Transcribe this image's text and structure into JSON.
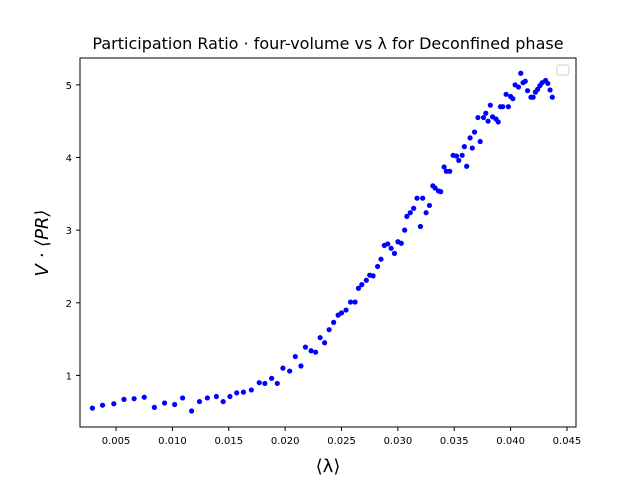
{
  "chart_data": {
    "type": "scatter",
    "title": "Participation Ratio · four-volume vs λ for Deconfined phase",
    "xlabel": "⟨λ⟩",
    "ylabel": "V · ⟨PR⟩",
    "xlim": [
      0.0018,
      0.0458
    ],
    "ylim": [
      0.29,
      5.37
    ],
    "x_ticks": [
      0.005,
      0.01,
      0.015,
      0.02,
      0.025,
      0.03,
      0.035,
      0.04,
      0.045
    ],
    "x_tick_labels": [
      "0.005",
      "0.010",
      "0.015",
      "0.020",
      "0.025",
      "0.030",
      "0.035",
      "0.040",
      "0.045"
    ],
    "y_ticks": [
      1,
      2,
      3,
      4,
      5
    ],
    "y_tick_labels": [
      "1",
      "2",
      "3",
      "4",
      "5"
    ],
    "grid": false,
    "legend": "top-right, empty",
    "marker_color": "#0000ff",
    "series": [
      {
        "x": [
          0.0029,
          0.0038,
          0.0048,
          0.0057,
          0.0066,
          0.0075,
          0.0084,
          0.0093,
          0.0102,
          0.0109,
          0.0117,
          0.0124,
          0.0131,
          0.0139,
          0.0145,
          0.0151,
          0.0157,
          0.0163,
          0.017,
          0.0177,
          0.0182,
          0.0188,
          0.0193,
          0.0198,
          0.0204,
          0.0209,
          0.0214,
          0.0218,
          0.0223,
          0.0227,
          0.0231,
          0.0235,
          0.0239,
          0.0243,
          0.0247,
          0.025,
          0.0254,
          0.0258,
          0.0262,
          0.0265,
          0.0268,
          0.0272,
          0.0275,
          0.0278,
          0.0282,
          0.0285,
          0.0288,
          0.0291,
          0.0294,
          0.0297,
          0.03,
          0.0303,
          0.0306,
          0.0308,
          0.0311,
          0.0314,
          0.0317,
          0.032,
          0.0322,
          0.0325,
          0.0328,
          0.0331,
          0.0333,
          0.0336,
          0.0338,
          0.0341,
          0.0343,
          0.0346,
          0.0349,
          0.0352,
          0.0354,
          0.0357,
          0.0359,
          0.0361,
          0.0364,
          0.0366,
          0.0368,
          0.0371,
          0.0373,
          0.0376,
          0.0378,
          0.038,
          0.0382,
          0.0384,
          0.0387,
          0.0389,
          0.0391,
          0.0393,
          0.0396,
          0.0398,
          0.04,
          0.0402,
          0.0404,
          0.0407,
          0.0409,
          0.0411,
          0.0413,
          0.0415,
          0.0418,
          0.042,
          0.0422,
          0.0424,
          0.0426,
          0.0428,
          0.0431,
          0.0433,
          0.0435,
          0.0437
        ],
        "y": [
          0.55,
          0.59,
          0.61,
          0.67,
          0.68,
          0.7,
          0.56,
          0.62,
          0.6,
          0.69,
          0.51,
          0.64,
          0.69,
          0.71,
          0.64,
          0.71,
          0.76,
          0.77,
          0.8,
          0.9,
          0.89,
          0.96,
          0.89,
          1.1,
          1.06,
          1.26,
          1.13,
          1.39,
          1.34,
          1.32,
          1.52,
          1.45,
          1.63,
          1.73,
          1.83,
          1.86,
          1.9,
          2.01,
          2.01,
          2.2,
          2.25,
          2.31,
          2.38,
          2.37,
          2.5,
          2.6,
          2.79,
          2.81,
          2.75,
          2.68,
          2.84,
          2.82,
          3.0,
          3.19,
          3.24,
          3.3,
          3.44,
          3.05,
          3.44,
          3.24,
          3.34,
          3.61,
          3.58,
          3.54,
          3.53,
          3.87,
          3.81,
          3.81,
          4.03,
          4.02,
          3.96,
          4.03,
          4.15,
          3.88,
          4.27,
          4.13,
          4.35,
          4.55,
          4.22,
          4.55,
          4.61,
          4.5,
          4.72,
          4.56,
          4.53,
          4.49,
          4.7,
          4.7,
          4.87,
          4.7,
          4.84,
          4.81,
          5.0,
          4.97,
          5.16,
          5.03,
          5.05,
          4.92,
          4.83,
          4.83,
          4.9,
          4.94,
          4.99,
          5.03,
          5.06,
          5.02,
          4.93,
          4.83
        ]
      }
    ]
  }
}
